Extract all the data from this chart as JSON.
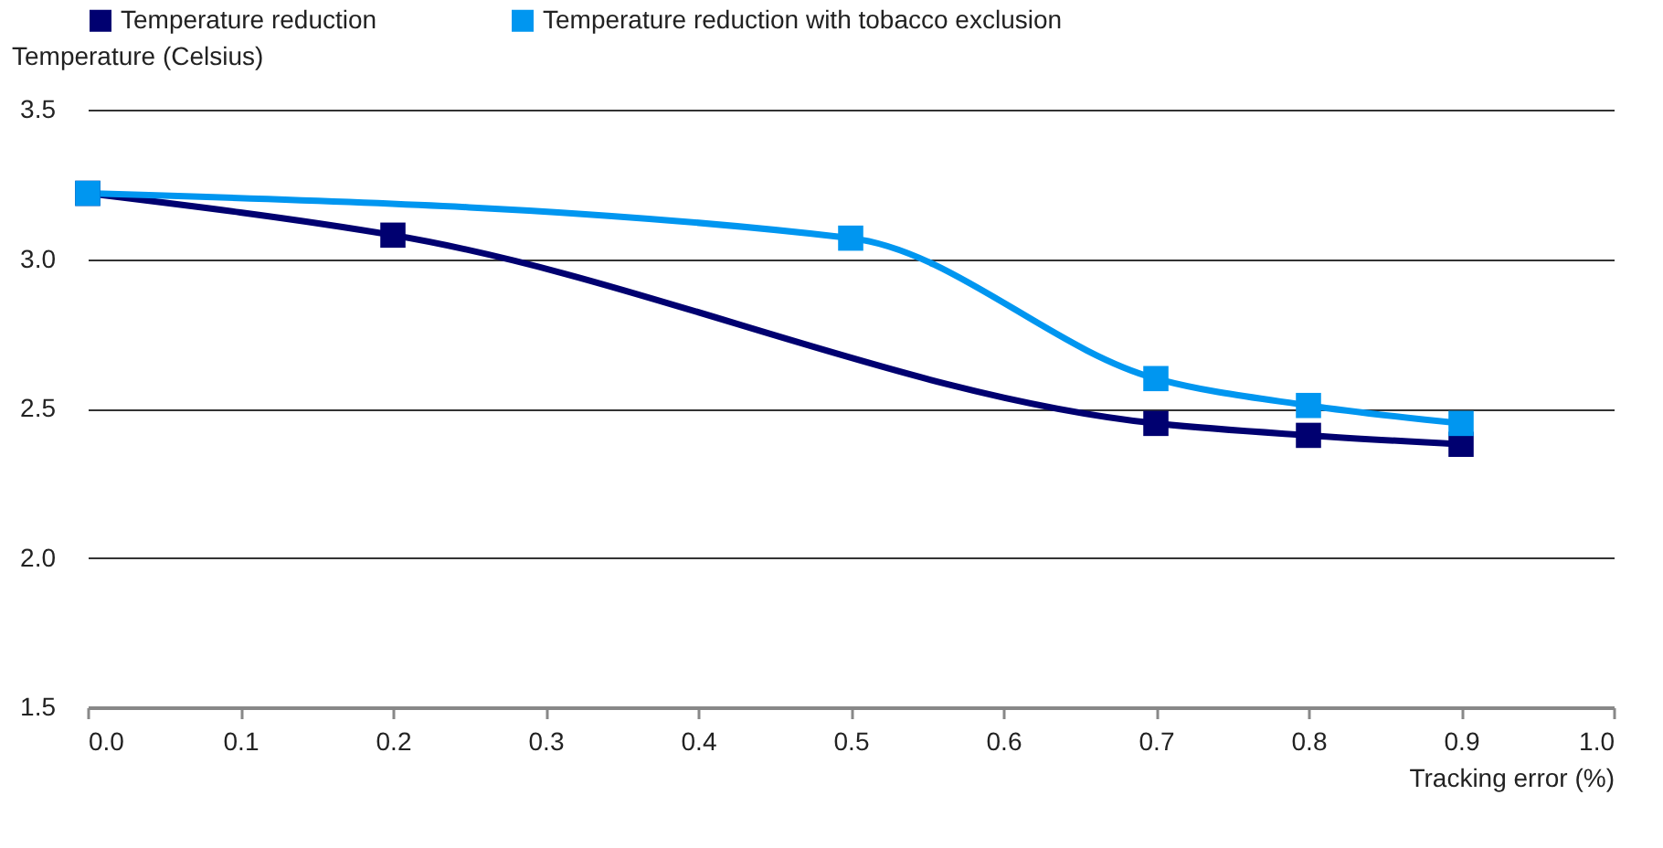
{
  "chart_data": {
    "type": "line",
    "xlabel": "Tracking error (%)",
    "ylabel": "Temperature (Celsius)",
    "series": [
      {
        "name": "Temperature reduction",
        "color": "#000070",
        "x": [
          0,
          0.2,
          0.7,
          0.8,
          0.9
        ],
        "values": [
          3.22,
          3.08,
          2.45,
          2.41,
          2.38
        ]
      },
      {
        "name": "Temperature reduction with tobacco exclusion",
        "color": "#0096f0",
        "x": [
          0,
          0.5,
          0.7,
          0.8,
          0.9
        ],
        "values": [
          3.22,
          3.07,
          2.6,
          2.51,
          2.45
        ]
      }
    ],
    "xlim": [
      0,
      1.0
    ],
    "xticks": [
      {
        "value": 0,
        "label": "0.0"
      },
      0.1,
      0.2,
      0.3,
      0.4,
      0.5,
      0.6,
      0.7,
      0.8,
      0.9,
      {
        "value": 1,
        "label": "1.0"
      }
    ],
    "ylim": [
      1.5,
      3.5
    ],
    "yticks": [
      1.5,
      {
        "value": 2,
        "label": "2.0"
      },
      2.5,
      {
        "value": 3,
        "label": "3.0"
      },
      3.5
    ],
    "grid": "y",
    "legend": "top left",
    "marker": "square",
    "line_style": "solid"
  }
}
